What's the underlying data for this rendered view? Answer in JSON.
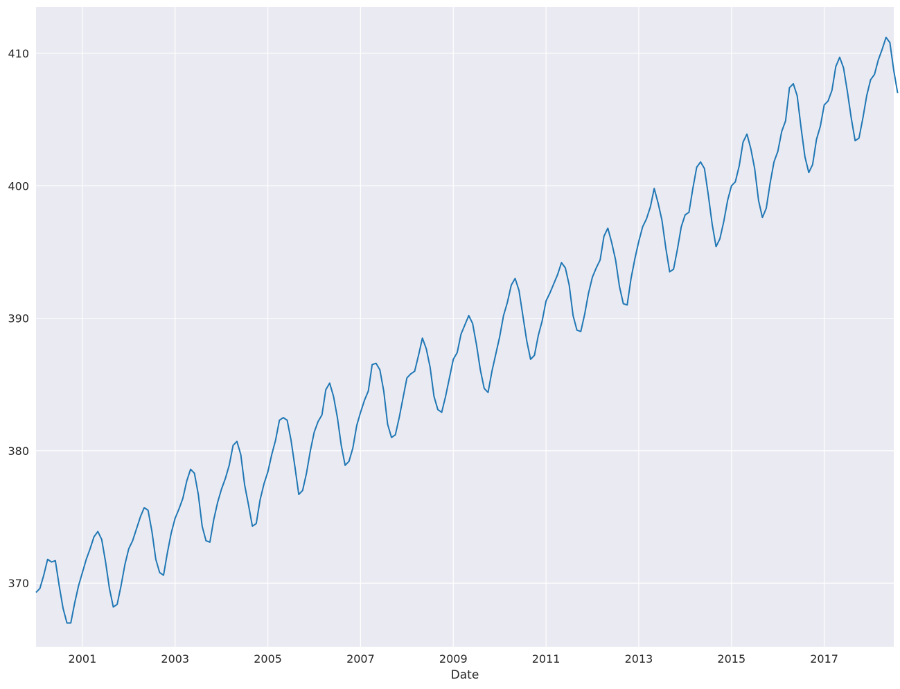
{
  "chart_data": {
    "type": "line",
    "title": "",
    "xlabel": "Date",
    "ylabel": "",
    "x_start": "2000-01",
    "x_end": "2018-07",
    "xlim": [
      "2000-01",
      "2018-07"
    ],
    "ylim": [
      365.2,
      413.5
    ],
    "x_ticks": [
      "2001",
      "2003",
      "2005",
      "2007",
      "2009",
      "2011",
      "2013",
      "2015",
      "2017"
    ],
    "y_ticks": [
      "370",
      "380",
      "390",
      "400",
      "410"
    ],
    "grid": true,
    "style": {
      "background": "#eaeaf2",
      "grid_color": "#ffffff",
      "line_color": "#1f77b4"
    },
    "series": [
      {
        "values": [
          369.3,
          369.6,
          370.6,
          371.8,
          371.6,
          371.7,
          369.8,
          368.1,
          367.0,
          367.0,
          368.5,
          369.8,
          370.8,
          371.8,
          372.6,
          373.5,
          373.9,
          373.3,
          371.6,
          369.6,
          368.2,
          368.4,
          369.8,
          371.4,
          372.6,
          373.2,
          374.1,
          375.0,
          375.7,
          375.5,
          373.9,
          371.8,
          370.8,
          370.6,
          372.3,
          373.8,
          374.9,
          375.6,
          376.4,
          377.7,
          378.6,
          378.3,
          376.7,
          374.3,
          373.2,
          373.1,
          374.8,
          376.1,
          377.1,
          377.9,
          378.9,
          380.4,
          380.7,
          379.7,
          377.4,
          375.9,
          374.3,
          374.5,
          376.3,
          377.5,
          378.4,
          379.7,
          380.8,
          382.3,
          382.5,
          382.3,
          380.8,
          378.8,
          376.7,
          377.0,
          378.3,
          380.0,
          381.4,
          382.2,
          382.7,
          384.6,
          385.1,
          384.1,
          382.5,
          380.4,
          378.9,
          379.2,
          380.2,
          381.9,
          382.9,
          383.8,
          384.5,
          386.5,
          386.6,
          386.1,
          384.5,
          382.0,
          381.0,
          381.2,
          382.5,
          384.0,
          385.5,
          385.8,
          386.0,
          387.2,
          388.5,
          387.7,
          386.3,
          384.1,
          383.1,
          382.9,
          384.1,
          385.5,
          386.9,
          387.4,
          388.8,
          389.5,
          390.2,
          389.6,
          388.0,
          386.1,
          384.7,
          384.4,
          386.0,
          387.3,
          388.6,
          390.2,
          391.2,
          392.5,
          393.0,
          392.1,
          390.2,
          388.3,
          386.9,
          387.2,
          388.7,
          389.8,
          391.3,
          391.9,
          392.6,
          393.3,
          394.2,
          393.8,
          392.5,
          390.2,
          389.1,
          389.0,
          390.3,
          391.9,
          393.1,
          393.8,
          394.4,
          396.2,
          396.8,
          395.7,
          394.4,
          392.4,
          391.1,
          391.0,
          393.0,
          394.5,
          395.8,
          396.9,
          397.5,
          398.4,
          399.8,
          398.7,
          397.4,
          395.3,
          393.5,
          393.7,
          395.2,
          396.9,
          397.8,
          398.0,
          399.8,
          401.4,
          401.8,
          401.3,
          399.3,
          397.1,
          395.4,
          396.0,
          397.3,
          398.9,
          400.0,
          400.3,
          401.5,
          403.3,
          403.9,
          402.8,
          401.3,
          398.9,
          397.6,
          398.3,
          400.2,
          401.8,
          402.6,
          404.1,
          404.9,
          407.4,
          407.7,
          406.8,
          404.4,
          402.2,
          401.0,
          401.6,
          403.5,
          404.5,
          406.1,
          406.4,
          407.2,
          409.0,
          409.7,
          408.9,
          407.1,
          405.1,
          403.4,
          403.6,
          405.1,
          406.8,
          408.0,
          408.4,
          409.5,
          410.3,
          411.2,
          410.8,
          408.7,
          407.0
        ]
      }
    ]
  }
}
